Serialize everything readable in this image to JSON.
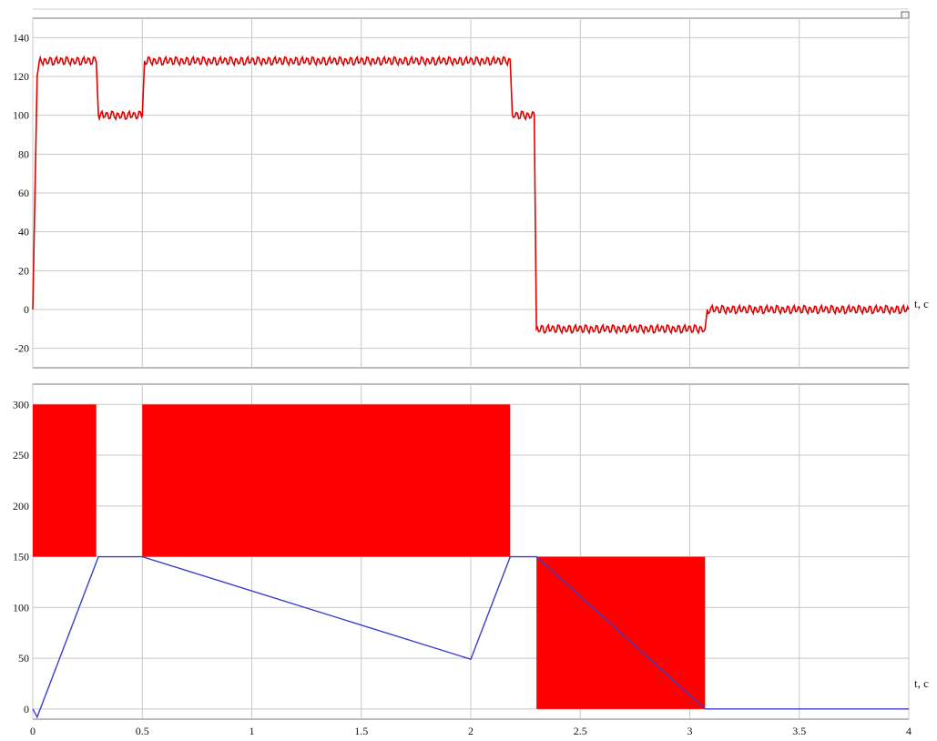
{
  "chart_data": [
    {
      "type": "line",
      "xlabel": "t, c",
      "xlim": [
        0,
        4
      ],
      "ylim": [
        -30,
        150
      ],
      "x_ticks": [],
      "y_ticks": [
        -20,
        0,
        20,
        40,
        60,
        80,
        100,
        120,
        140
      ],
      "grid": true,
      "series": [
        {
          "color": "#e00000",
          "noise": 2,
          "x": [
            0,
            0.02,
            0.03,
            0.29,
            0.3,
            0.5,
            0.51,
            2.18,
            2.19,
            2.29,
            2.3,
            3.07,
            3.08,
            4.0
          ],
          "y": [
            0,
            120,
            128,
            128,
            100,
            100,
            128,
            128,
            100,
            100,
            -10,
            -10,
            0,
            0
          ]
        }
      ]
    },
    {
      "type": "line",
      "xlabel": "t, c",
      "xlim": [
        0,
        4
      ],
      "ylim": [
        -10,
        320
      ],
      "x_ticks": [
        0,
        0.5,
        1,
        1.5,
        2,
        2.5,
        3,
        3.5,
        4
      ],
      "y_ticks": [
        0,
        50,
        100,
        150,
        200,
        250,
        300
      ],
      "grid": true,
      "bands": [
        {
          "color": "#ff0000",
          "x": [
            0.0,
            0.29
          ],
          "y": [
            150,
            300
          ]
        },
        {
          "color": "#ff0000",
          "x": [
            0.5,
            2.18
          ],
          "y": [
            150,
            300
          ]
        },
        {
          "color": "#ff0000",
          "x": [
            2.3,
            3.07
          ],
          "y": [
            0,
            150
          ]
        }
      ],
      "series": [
        {
          "color": "#3d3dcc",
          "x": [
            0,
            0.02,
            0.3,
            0.5,
            2.0,
            2.18,
            2.3,
            3.07,
            4.0
          ],
          "y": [
            0,
            -8,
            150,
            150,
            49,
            150,
            150,
            0,
            0
          ]
        }
      ]
    }
  ]
}
